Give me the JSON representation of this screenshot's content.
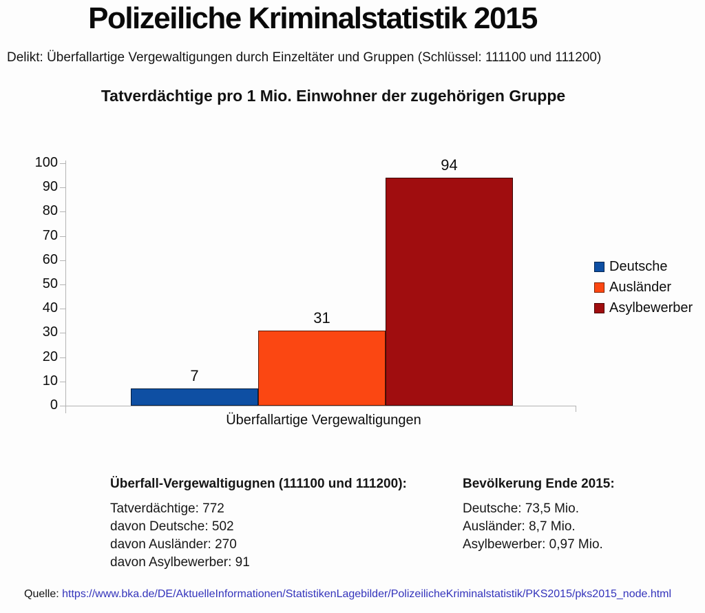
{
  "header": {
    "title": "Polizeiliche Kriminalstatistik 2015",
    "subtitle": "Delikt: Überfallartige Vergewaltigungen durch Einzeltäter und Gruppen (Schlüssel: 111100 und 111200)"
  },
  "chart_data": {
    "type": "bar",
    "title": "Tatverdächtige pro 1 Mio. Einwohner der zugehörigen Gruppe",
    "categories": [
      "Überfallartige Vergewaltigungen"
    ],
    "series": [
      {
        "name": "Deutsche",
        "values": [
          7
        ],
        "color": "#0e4fa3",
        "border_color": "#06264f"
      },
      {
        "name": "Ausländer",
        "values": [
          31
        ],
        "color": "#fb4712",
        "border_color": "#7e2405"
      },
      {
        "name": "Asylbewerber",
        "values": [
          94
        ],
        "color": "#a00d0f",
        "border_color": "#4a0405"
      }
    ],
    "xlabel": "Überfallartige Vergewaltigungen",
    "ylabel": "",
    "ylim": [
      0,
      100
    ],
    "ytick_step": 10,
    "yticks": [
      0,
      10,
      20,
      30,
      40,
      50,
      60,
      70,
      80,
      90,
      100
    ],
    "grid": false,
    "legend_position": "right",
    "bar_value_labels": [
      "7",
      "31",
      "94"
    ],
    "axis_color": "#b3b3b3"
  },
  "footnotes": {
    "left": {
      "heading": "Überfall-Vergewaltigugnen (111100 und 111200):",
      "lines": [
        "Tatverdächtige: 772",
        "davon Deutsche: 502",
        "davon Ausländer: 270",
        "davon Asylbewerber: 91"
      ]
    },
    "right": {
      "heading": "Bevölkerung Ende 2015:",
      "lines": [
        "Deutsche: 73,5 Mio.",
        "Ausländer: 8,7 Mio.",
        "Asylbewerber: 0,97 Mio."
      ]
    }
  },
  "source": {
    "label": "Quelle: ",
    "url": "https://www.bka.de/DE/AktuelleInformationen/StatistikenLagebilder/PolizeilicheKriminalstatistik/PKS2015/pks2015_node.html",
    "link_color": "#3333bb"
  }
}
